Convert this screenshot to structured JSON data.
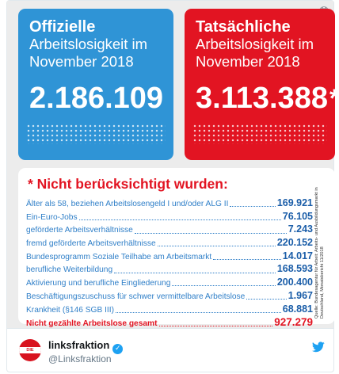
{
  "left_box": {
    "title": "Offizielle",
    "sub1": "Arbeitslosigkeit im",
    "sub2": "November 2018",
    "number": "2.186.109",
    "color": "#2f94d6"
  },
  "right_box": {
    "title": "Tatsächliche",
    "sub1": "Arbeitslosigkeit im",
    "sub2": "November 2018",
    "number": "3.113.388",
    "star": "*",
    "color": "#e21422"
  },
  "panel": {
    "title": "* Nicht berücksichtigt wurden:",
    "rows": [
      {
        "label": "Älter als 58, beziehen Arbeitslosengeld I und/oder ALG II",
        "value": "169.921"
      },
      {
        "label": "Ein-Euro-Jobs",
        "value": "76.105"
      },
      {
        "label": "geförderte Arbeitsverhältnisse",
        "value": "7.243"
      },
      {
        "label": "fremd geförderte Arbeitsverhältnisse",
        "value": "220.152"
      },
      {
        "label": "Bundesprogramm Soziale Teilhabe am Arbeitsmarkt",
        "value": "14.017"
      },
      {
        "label": "berufliche Weiterbildung",
        "value": "168.593"
      },
      {
        "label": "Aktivierung und berufliche Eingliederung",
        "value": "200.400"
      },
      {
        "label": "Beschäftigungszuschuss für schwer vermittelbare Arbeitslose",
        "value": "1.967"
      },
      {
        "label": "Krankheit (§146 SGB III)",
        "value": "68.881"
      }
    ],
    "total": {
      "label": "Nicht gezählte Arbeitslose gesamt",
      "value": "927.279"
    },
    "source": "Quelle: Bundesagentur für Arbeit: Arbeits- und Ausbildungsmarkt in Deutschland, Monatsbericht 11/2018"
  },
  "info_icon": "i",
  "author": {
    "name": "linksfraktion",
    "handle": "@Linksfraktion",
    "avatar_text": "DIE LINKE.",
    "verified": "✓"
  },
  "icons": [
    "info-icon",
    "verified-badge-icon",
    "twitter-bird-icon"
  ]
}
